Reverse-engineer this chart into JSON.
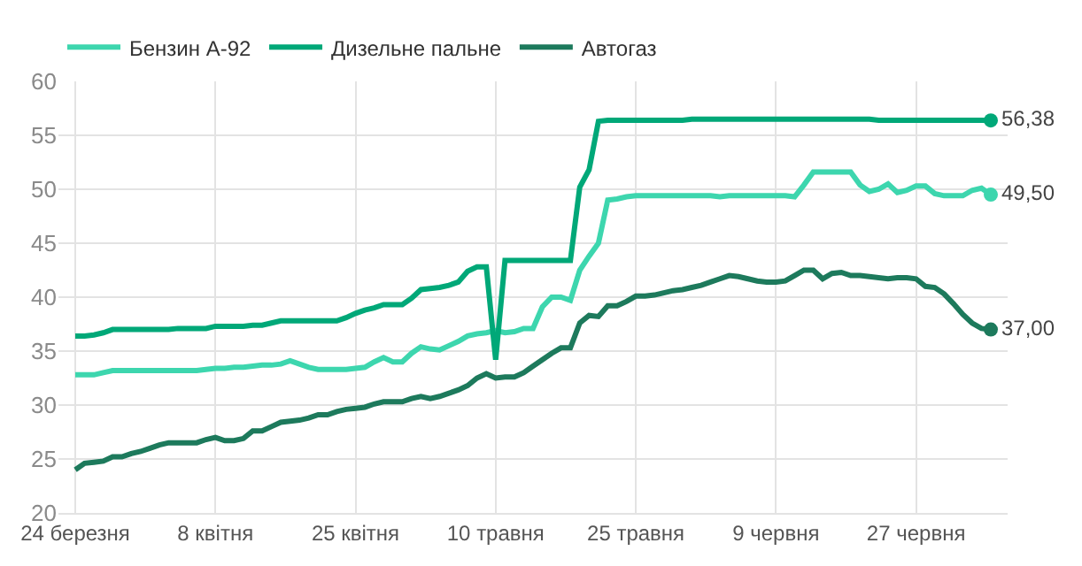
{
  "chart_data": {
    "type": "line",
    "categories": [
      "24 березня",
      null,
      null,
      null,
      null,
      null,
      null,
      null,
      null,
      null,
      null,
      null,
      null,
      null,
      null,
      "8 квітня",
      null,
      null,
      null,
      null,
      null,
      null,
      null,
      null,
      null,
      null,
      null,
      null,
      null,
      null,
      "25 квітня",
      null,
      null,
      null,
      null,
      null,
      null,
      null,
      null,
      null,
      null,
      null,
      null,
      null,
      null,
      "10 травня",
      null,
      null,
      null,
      null,
      null,
      null,
      null,
      null,
      null,
      null,
      null,
      null,
      null,
      null,
      "25 травня",
      null,
      null,
      null,
      null,
      null,
      null,
      null,
      null,
      null,
      null,
      null,
      null,
      null,
      null,
      "9 червня",
      null,
      null,
      null,
      null,
      null,
      null,
      null,
      null,
      null,
      null,
      null,
      null,
      null,
      null,
      "27 червня",
      null,
      null,
      null,
      null,
      null,
      null,
      null,
      null
    ],
    "ylim": [
      20,
      60
    ],
    "yticks": [
      20,
      25,
      30,
      35,
      40,
      45,
      50,
      55,
      60
    ],
    "grid": true,
    "legend": "top left",
    "line_style": "solid",
    "series": [
      {
        "name": "Бензин А-92",
        "color": "#3dd6ae",
        "values": [
          32.8,
          32.8,
          32.8,
          33.0,
          33.2,
          33.2,
          33.2,
          33.2,
          33.2,
          33.2,
          33.2,
          33.2,
          33.2,
          33.2,
          33.3,
          33.4,
          33.4,
          33.5,
          33.5,
          33.6,
          33.7,
          33.7,
          33.8,
          34.1,
          33.8,
          33.5,
          33.3,
          33.3,
          33.3,
          33.3,
          33.4,
          33.5,
          34.0,
          34.4,
          34.0,
          34.0,
          34.8,
          35.4,
          35.2,
          35.1,
          35.5,
          35.9,
          36.4,
          36.6,
          36.7,
          36.9,
          36.7,
          36.8,
          37.1,
          37.1,
          39.1,
          40.0,
          40.0,
          39.7,
          42.5,
          43.8,
          45.0,
          49.0,
          49.1,
          49.3,
          49.4,
          49.4,
          49.4,
          49.4,
          49.4,
          49.4,
          49.4,
          49.4,
          49.4,
          49.3,
          49.4,
          49.4,
          49.4,
          49.4,
          49.4,
          49.4,
          49.4,
          49.3,
          50.4,
          51.6,
          51.6,
          51.6,
          51.6,
          51.6,
          50.4,
          49.8,
          50.0,
          50.5,
          49.7,
          49.9,
          50.3,
          50.3,
          49.6,
          49.4,
          49.4,
          49.4,
          49.9,
          50.1,
          49.5
        ],
        "value_labels": [
          null,
          null,
          null,
          null,
          null,
          null,
          null,
          null,
          null,
          null,
          null,
          null,
          null,
          null,
          null,
          null,
          null,
          null,
          null,
          null,
          null,
          null,
          null,
          null,
          null,
          null,
          null,
          null,
          null,
          null,
          null,
          null,
          null,
          null,
          null,
          null,
          null,
          null,
          null,
          null,
          null,
          null,
          null,
          null,
          null,
          null,
          null,
          null,
          null,
          null,
          null,
          null,
          null,
          null,
          null,
          null,
          null,
          null,
          null,
          null,
          null,
          null,
          null,
          null,
          null,
          null,
          null,
          null,
          null,
          null,
          null,
          null,
          null,
          null,
          null,
          null,
          null,
          null,
          null,
          null,
          null,
          null,
          null,
          null,
          null,
          null,
          null,
          null,
          null,
          null,
          null,
          null,
          null,
          null,
          null,
          null,
          null,
          null,
          "49,50"
        ]
      },
      {
        "name": "Дизельне пальне",
        "color": "#00a878",
        "values": [
          36.4,
          36.4,
          36.5,
          36.7,
          37.0,
          37.0,
          37.0,
          37.0,
          37.0,
          37.0,
          37.0,
          37.1,
          37.1,
          37.1,
          37.1,
          37.3,
          37.3,
          37.3,
          37.3,
          37.4,
          37.4,
          37.6,
          37.8,
          37.8,
          37.8,
          37.8,
          37.8,
          37.8,
          37.8,
          38.1,
          38.5,
          38.8,
          39.0,
          39.3,
          39.3,
          39.3,
          39.9,
          40.7,
          40.8,
          40.9,
          41.1,
          41.4,
          42.4,
          42.8,
          42.8,
          34.2,
          43.4,
          43.4,
          43.4,
          43.4,
          43.4,
          43.4,
          43.4,
          43.4,
          50.2,
          51.8,
          56.3,
          56.4,
          56.4,
          56.4,
          56.4,
          56.4,
          56.4,
          56.4,
          56.4,
          56.4,
          56.5,
          56.5,
          56.5,
          56.5,
          56.5,
          56.5,
          56.5,
          56.5,
          56.5,
          56.5,
          56.5,
          56.5,
          56.5,
          56.5,
          56.5,
          56.5,
          56.5,
          56.5,
          56.5,
          56.5,
          56.4,
          56.4,
          56.4,
          56.4,
          56.4,
          56.4,
          56.4,
          56.4,
          56.4,
          56.4,
          56.4,
          56.4,
          56.38
        ],
        "value_labels": [
          null,
          null,
          null,
          null,
          null,
          null,
          null,
          null,
          null,
          null,
          null,
          null,
          null,
          null,
          null,
          null,
          null,
          null,
          null,
          null,
          null,
          null,
          null,
          null,
          null,
          null,
          null,
          null,
          null,
          null,
          null,
          null,
          null,
          null,
          null,
          null,
          null,
          null,
          null,
          null,
          null,
          null,
          null,
          null,
          null,
          null,
          null,
          null,
          null,
          null,
          null,
          null,
          null,
          null,
          null,
          null,
          null,
          null,
          null,
          null,
          null,
          null,
          null,
          null,
          null,
          null,
          null,
          null,
          null,
          null,
          null,
          null,
          null,
          null,
          null,
          null,
          null,
          null,
          null,
          null,
          null,
          null,
          null,
          null,
          null,
          null,
          null,
          null,
          null,
          null,
          null,
          null,
          null,
          null,
          null,
          null,
          null,
          null,
          "56,38"
        ]
      },
      {
        "name": "Автогаз",
        "color": "#1d7a5c",
        "values": [
          24.0,
          24.6,
          24.7,
          24.8,
          25.2,
          25.2,
          25.5,
          25.7,
          26.0,
          26.3,
          26.5,
          26.5,
          26.5,
          26.5,
          26.8,
          27.0,
          26.7,
          26.7,
          26.9,
          27.6,
          27.6,
          28.0,
          28.4,
          28.5,
          28.6,
          28.8,
          29.1,
          29.1,
          29.4,
          29.6,
          29.7,
          29.8,
          30.1,
          30.3,
          30.3,
          30.3,
          30.6,
          30.8,
          30.6,
          30.8,
          31.1,
          31.4,
          31.8,
          32.5,
          32.9,
          32.5,
          32.6,
          32.6,
          33.0,
          33.6,
          34.2,
          34.8,
          35.3,
          35.3,
          37.6,
          38.3,
          38.2,
          39.2,
          39.2,
          39.6,
          40.1,
          40.1,
          40.2,
          40.4,
          40.6,
          40.7,
          40.9,
          41.1,
          41.4,
          41.7,
          42.0,
          41.9,
          41.7,
          41.5,
          41.4,
          41.4,
          41.5,
          42.0,
          42.5,
          42.5,
          41.7,
          42.2,
          42.3,
          42.0,
          42.0,
          41.9,
          41.8,
          41.7,
          41.8,
          41.8,
          41.7,
          41.0,
          40.9,
          40.3,
          39.4,
          38.4,
          37.6,
          37.1,
          37.0
        ],
        "value_labels": [
          null,
          null,
          null,
          null,
          null,
          null,
          null,
          null,
          null,
          null,
          null,
          null,
          null,
          null,
          null,
          null,
          null,
          null,
          null,
          null,
          null,
          null,
          null,
          null,
          null,
          null,
          null,
          null,
          null,
          null,
          null,
          null,
          null,
          null,
          null,
          null,
          null,
          null,
          null,
          null,
          null,
          null,
          null,
          null,
          null,
          null,
          null,
          null,
          null,
          null,
          null,
          null,
          null,
          null,
          null,
          null,
          null,
          null,
          null,
          null,
          null,
          null,
          null,
          null,
          null,
          null,
          null,
          null,
          null,
          null,
          null,
          null,
          null,
          null,
          null,
          null,
          null,
          null,
          null,
          null,
          null,
          null,
          null,
          null,
          null,
          null,
          null,
          null,
          null,
          null,
          null,
          null,
          null,
          null,
          null,
          null,
          null,
          null,
          "37,00"
        ]
      }
    ]
  }
}
